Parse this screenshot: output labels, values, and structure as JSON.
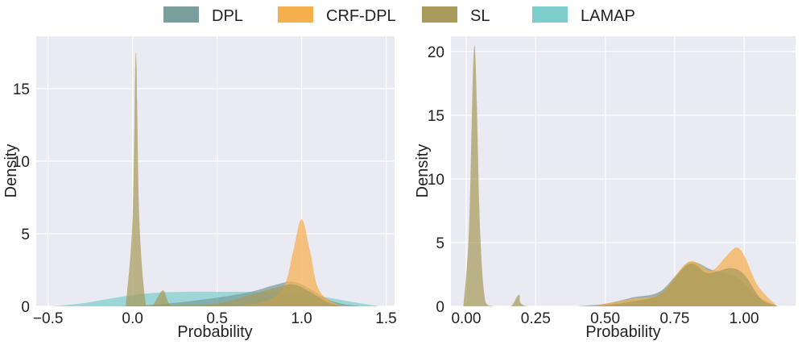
{
  "legend": [
    {
      "label": "DPL",
      "color": "#7a9e9c"
    },
    {
      "label": "CRF-DPL",
      "color": "#f5b04e"
    },
    {
      "label": "SL",
      "color": "#a89b5c"
    },
    {
      "label": "LAMAP",
      "color": "#7ecfcc"
    }
  ],
  "chart_data": [
    {
      "type": "area",
      "title": "",
      "xlabel": "Probability",
      "ylabel": "Density",
      "xlim": [
        -0.57,
        1.55
      ],
      "ylim": [
        0,
        18.6
      ],
      "xticks": [
        -0.5,
        0.0,
        0.5,
        1.0,
        1.5
      ],
      "xtick_labels": [
        "−0.5",
        "0.0",
        "0.5",
        "1.0",
        "1.5"
      ],
      "yticks": [
        0,
        5,
        10,
        15
      ],
      "ytick_labels": [
        "0",
        "5",
        "10",
        "15"
      ],
      "series": [
        {
          "name": "LAMAP",
          "color": "#7ecfcc",
          "x": [
            -0.48,
            -0.3,
            -0.1,
            0.1,
            0.3,
            0.5,
            0.7,
            0.9,
            1.1,
            1.3,
            1.46
          ],
          "y": [
            0.0,
            0.2,
            0.6,
            0.9,
            1.0,
            1.0,
            1.0,
            0.9,
            0.7,
            0.3,
            0.0
          ]
        },
        {
          "name": "DPL",
          "color": "#7a9e9c",
          "x": [
            -0.1,
            0.1,
            0.3,
            0.5,
            0.7,
            0.85,
            0.95,
            1.05,
            1.15,
            1.25,
            1.35
          ],
          "y": [
            0.0,
            0.1,
            0.3,
            0.6,
            1.0,
            1.5,
            1.7,
            1.2,
            0.5,
            0.15,
            0.0
          ]
        },
        {
          "name": "CRF-DPL",
          "color": "#f5b04e",
          "x": [
            0.6,
            0.8,
            0.9,
            0.95,
            1.0,
            1.05,
            1.1,
            1.2,
            1.3
          ],
          "y": [
            0.0,
            0.4,
            1.5,
            3.8,
            6.0,
            3.8,
            1.2,
            0.2,
            0.0
          ]
        },
        {
          "name": "SL",
          "color": "#a89b5c",
          "x": [
            -0.04,
            0.0,
            0.02,
            0.04,
            0.08,
            0.12,
            0.18,
            0.22,
            0.3,
            0.5,
            0.7,
            0.85,
            0.95,
            1.05,
            1.15,
            1.25
          ],
          "y": [
            0.0,
            6.0,
            17.5,
            6.0,
            0.05,
            0.1,
            1.1,
            0.15,
            0.1,
            0.2,
            0.8,
            1.3,
            1.5,
            1.0,
            0.3,
            0.0
          ]
        }
      ]
    },
    {
      "type": "area",
      "title": "",
      "xlabel": "Probability",
      "ylabel": "Density",
      "xlim": [
        -0.055,
        1.185
      ],
      "ylim": [
        0,
        21.2
      ],
      "xticks": [
        0.0,
        0.25,
        0.5,
        0.75,
        1.0
      ],
      "xtick_labels": [
        "0.00",
        "0.25",
        "0.50",
        "0.75",
        "1.00"
      ],
      "yticks": [
        0,
        5,
        10,
        15,
        20
      ],
      "ytick_labels": [
        "0",
        "5",
        "10",
        "15",
        "20"
      ],
      "series": [
        {
          "name": "DPL",
          "color": "#7a9e9c",
          "x": [
            0.4,
            0.5,
            0.6,
            0.7,
            0.8,
            0.88,
            0.93,
            0.98,
            1.05,
            1.12
          ],
          "y": [
            0.0,
            0.2,
            0.7,
            1.2,
            3.4,
            2.9,
            2.6,
            2.2,
            0.8,
            0.0
          ]
        },
        {
          "name": "CRF-DPL",
          "color": "#f5b04e",
          "x": [
            0.45,
            0.6,
            0.7,
            0.8,
            0.88,
            0.93,
            0.97,
            1.0,
            1.05,
            1.12
          ],
          "y": [
            0.0,
            0.6,
            1.0,
            3.5,
            2.8,
            3.8,
            4.6,
            4.0,
            1.6,
            0.0
          ]
        },
        {
          "name": "SL",
          "color": "#a89b5c",
          "x": [
            -0.01,
            0.01,
            0.03,
            0.05,
            0.07,
            0.1,
            0.16,
            0.19,
            0.22,
            0.45,
            0.6,
            0.7,
            0.8,
            0.87,
            0.95,
            1.0,
            1.06,
            1.12
          ],
          "y": [
            0.0,
            6.0,
            20.5,
            6.0,
            0.3,
            0.0,
            0.0,
            0.9,
            0.0,
            0.0,
            0.4,
            1.0,
            3.3,
            2.6,
            3.0,
            2.5,
            0.6,
            0.0
          ]
        }
      ]
    }
  ]
}
